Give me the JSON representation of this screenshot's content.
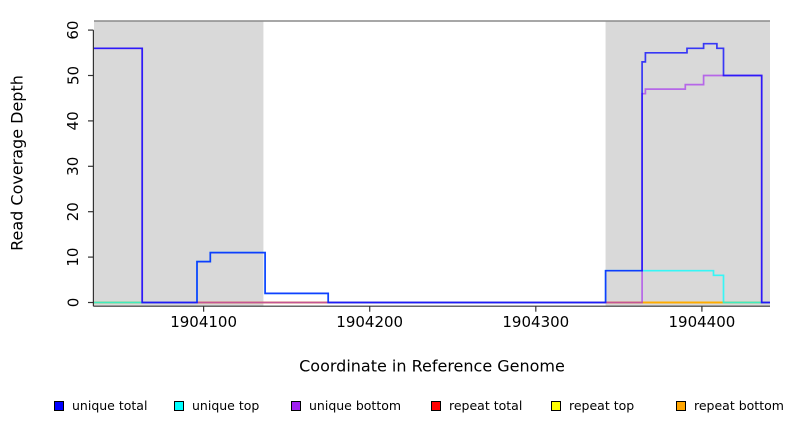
{
  "chart_data": {
    "type": "line",
    "step": true,
    "title": "",
    "xlabel": "Coordinate in Reference Genome",
    "ylabel": "Read Coverage Depth",
    "xlim": [
      1904034,
      1904441
    ],
    "ylim": [
      0,
      62
    ],
    "x_ticks": [
      1904100,
      1904200,
      1904300,
      1904400
    ],
    "y_ticks": [
      0,
      10,
      20,
      30,
      40,
      50,
      60
    ],
    "grid": false,
    "legend_position": "bottom",
    "region_top": 62,
    "region_color": "#d9d9d9",
    "boundary_line_color": "#8a8a8a",
    "axis_color": "#333333",
    "shaded_regions": [
      {
        "x0": 1904034,
        "x1": 1904136
      },
      {
        "x0": 1904342,
        "x1": 1904441
      }
    ],
    "series": [
      {
        "name": "repeat total",
        "color": "#ff0000",
        "opacity": 0.9,
        "points": [
          [
            1904034,
            0
          ],
          [
            1904441,
            0
          ]
        ]
      },
      {
        "name": "repeat top",
        "color": "#ffff00",
        "opacity": 0.9,
        "points": [
          [
            1904034,
            0
          ],
          [
            1904441,
            0
          ]
        ]
      },
      {
        "name": "repeat bottom",
        "color": "#ffa500",
        "opacity": 0.9,
        "points": [
          [
            1904034,
            0
          ],
          [
            1904441,
            0
          ]
        ]
      },
      {
        "name": "unique top",
        "color": "#00ffff",
        "opacity": 0.75,
        "points": [
          [
            1904034,
            0
          ],
          [
            1904096,
            9
          ],
          [
            1904104,
            11
          ],
          [
            1904137,
            2
          ],
          [
            1904175,
            0
          ],
          [
            1904342,
            7
          ],
          [
            1904407,
            6
          ],
          [
            1904413,
            0
          ],
          [
            1904441,
            0
          ]
        ]
      },
      {
        "name": "unique bottom",
        "color": "#a020f0",
        "opacity": 0.62,
        "points": [
          [
            1904034,
            56
          ],
          [
            1904063,
            0
          ],
          [
            1904364,
            46
          ],
          [
            1904366,
            47
          ],
          [
            1904390,
            48
          ],
          [
            1904401,
            50
          ],
          [
            1904436,
            0
          ],
          [
            1904441,
            0
          ]
        ]
      },
      {
        "name": "unique total",
        "color": "#0000ff",
        "opacity": 0.75,
        "points": [
          [
            1904034,
            56
          ],
          [
            1904063,
            0
          ],
          [
            1904096,
            9
          ],
          [
            1904104,
            11
          ],
          [
            1904137,
            2
          ],
          [
            1904175,
            0
          ],
          [
            1904342,
            7
          ],
          [
            1904364,
            53
          ],
          [
            1904366,
            55
          ],
          [
            1904391,
            56
          ],
          [
            1904401,
            57
          ],
          [
            1904409,
            56
          ],
          [
            1904413,
            50
          ],
          [
            1904436,
            0
          ],
          [
            1904441,
            0
          ]
        ]
      }
    ],
    "legend": [
      {
        "label": "unique total",
        "color": "#0000ff"
      },
      {
        "label": "unique top",
        "color": "#00ffff"
      },
      {
        "label": "unique bottom",
        "color": "#a020f0"
      },
      {
        "label": "repeat total",
        "color": "#ff0000"
      },
      {
        "label": "repeat top",
        "color": "#ffff00"
      },
      {
        "label": "repeat bottom",
        "color": "#ffa500"
      }
    ]
  }
}
